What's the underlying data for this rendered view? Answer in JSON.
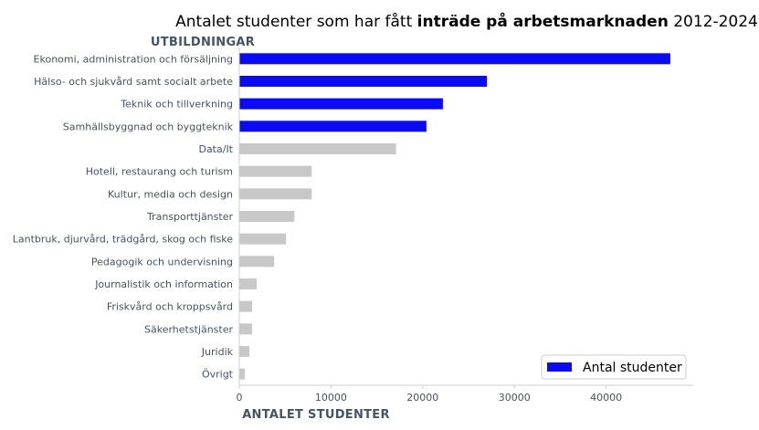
{
  "chart_data": {
    "type": "bar",
    "orientation": "horizontal",
    "title_parts": [
      {
        "text": "Antalet studenter som har fått ",
        "bold": false
      },
      {
        "text": "inträde på arbetsmarknaden",
        "bold": true
      },
      {
        "text": " 2012-2024",
        "bold": false
      }
    ],
    "ylabel": "UTBILDNINGAR",
    "xlabel": "ANTALET STUDENTER",
    "xlim": [
      0,
      49500
    ],
    "xticks": [
      0,
      10000,
      20000,
      30000,
      40000
    ],
    "categories": [
      "Ekonomi, administration och försäljning",
      "Hälso- och sjukvård samt socialt arbete",
      "Teknik och tillverkning",
      "Samhällsbyggnad och byggteknik",
      "Data/It",
      "Hotell, restaurang och turism",
      "Kultur, media och design",
      "Transporttjänster",
      "Lantbruk, djurvård, trädgård, skog och fiske",
      "Pedagogik och undervisning",
      "Journalistik och information",
      "Friskvård och kroppsvård",
      "Säkerhetstjänster",
      "Juridik",
      "Övrigt"
    ],
    "values": [
      47000,
      27000,
      22200,
      20400,
      17100,
      7900,
      7900,
      6000,
      5100,
      3800,
      1900,
      1400,
      1400,
      1100,
      600
    ],
    "highlighted": [
      true,
      true,
      true,
      true,
      false,
      false,
      false,
      false,
      false,
      false,
      false,
      false,
      false,
      false,
      false
    ],
    "series": [
      {
        "name": "Antal studenter"
      }
    ],
    "colors": {
      "highlight": "#0a0af5",
      "other": "#c8c8c8",
      "axis": "#cccccc",
      "text": "#425466"
    },
    "legend_position": "bottom-right",
    "grid": false
  }
}
